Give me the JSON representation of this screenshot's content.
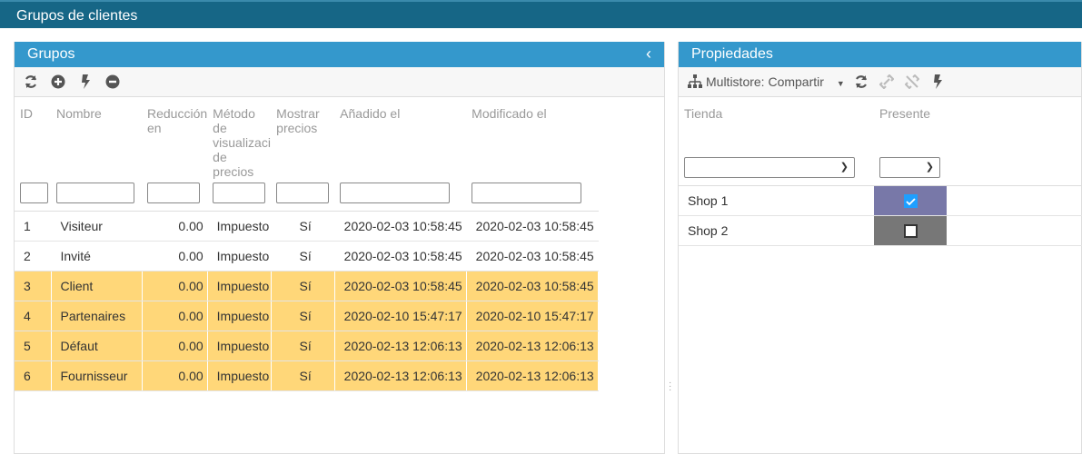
{
  "window": {
    "title": "Grupos de clientes"
  },
  "left": {
    "title": "Grupos",
    "toolbar": [
      "refresh-icon",
      "add-icon",
      "bolt-icon",
      "remove-icon"
    ],
    "columns": [
      "ID",
      "Nombre",
      "Reducción en",
      "Método de visualizació de precios",
      "Mostrar precios",
      "Añadido el",
      "Modificado el"
    ],
    "rows": [
      {
        "id": "1",
        "name": "Visiteur",
        "reduction": "0.00",
        "method": "Impuesto i",
        "show": "Sí",
        "added": "2020-02-03 10:58:45",
        "modified": "2020-02-03 10:58:45",
        "selected": false
      },
      {
        "id": "2",
        "name": "Invité",
        "reduction": "0.00",
        "method": "Impuesto i",
        "show": "Sí",
        "added": "2020-02-03 10:58:45",
        "modified": "2020-02-03 10:58:45",
        "selected": false
      },
      {
        "id": "3",
        "name": "Client",
        "reduction": "0.00",
        "method": "Impuesto i",
        "show": "Sí",
        "added": "2020-02-03 10:58:45",
        "modified": "2020-02-03 10:58:45",
        "selected": true
      },
      {
        "id": "4",
        "name": "Partenaires",
        "reduction": "0.00",
        "method": "Impuesto i",
        "show": "Sí",
        "added": "2020-02-10 15:47:17",
        "modified": "2020-02-10 15:47:17",
        "selected": true
      },
      {
        "id": "5",
        "name": "Défaut",
        "reduction": "0.00",
        "method": "Impuesto i",
        "show": "Sí",
        "added": "2020-02-13 12:06:13",
        "modified": "2020-02-13 12:06:13",
        "selected": true
      },
      {
        "id": "6",
        "name": "Fournisseur",
        "reduction": "0.00",
        "method": "Impuesto i",
        "show": "Sí",
        "added": "2020-02-13 12:06:13",
        "modified": "2020-02-13 12:06:13",
        "selected": true
      }
    ]
  },
  "right": {
    "title": "Propiedades",
    "multistore_label": "Multistore: Compartir",
    "columns": [
      "Tienda",
      "Presente"
    ],
    "rows": [
      {
        "shop": "Shop 1",
        "present": true
      },
      {
        "shop": "Shop 2",
        "present": false
      }
    ]
  },
  "colors": {
    "titlebar": "#166686",
    "panel_header": "#3498cc",
    "selected_row": "#ffd779",
    "present_checked": "#7878a8",
    "present_unchecked": "#777777",
    "checkbox": "#1e9fff"
  }
}
